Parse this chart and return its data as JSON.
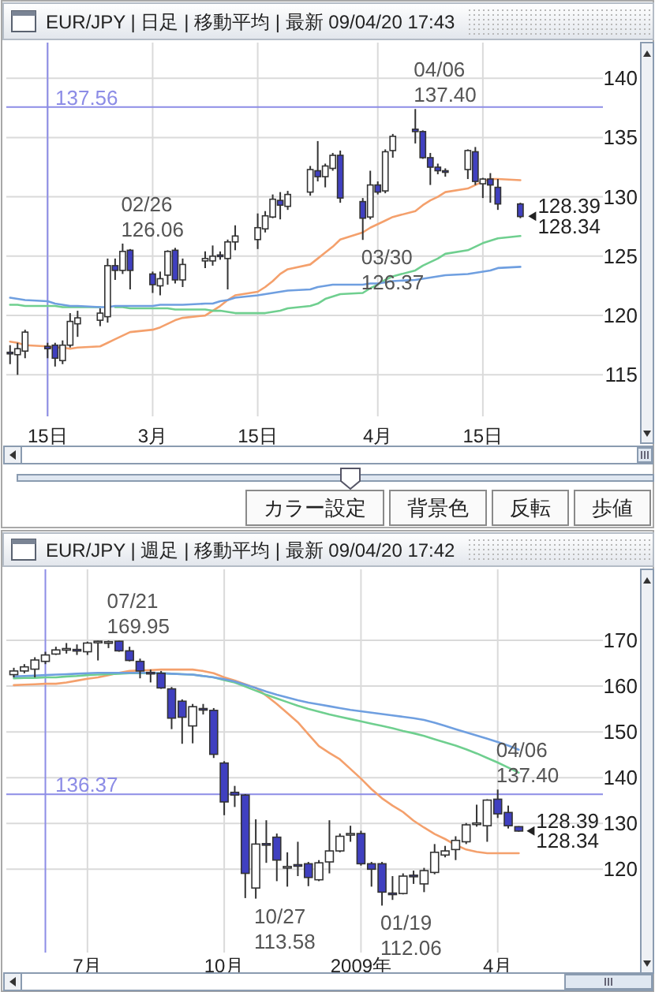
{
  "chart_data": [
    {
      "type": "candlestick",
      "title": "EUR/JPY | 日足 | 移動平均 | 最新 09/04/20 17:43",
      "x": [
        "2009-02-11",
        "2009-02-12",
        "2009-02-13",
        "2009-02-16",
        "2009-02-17",
        "2009-02-18",
        "2009-02-19",
        "2009-02-20",
        "2009-02-23",
        "2009-02-24",
        "2009-02-25",
        "2009-02-26",
        "2009-02-27",
        "2009-03-02",
        "2009-03-03",
        "2009-03-04",
        "2009-03-05",
        "2009-03-06",
        "2009-03-09",
        "2009-03-10",
        "2009-03-11",
        "2009-03-12",
        "2009-03-13",
        "2009-03-16",
        "2009-03-17",
        "2009-03-18",
        "2009-03-19",
        "2009-03-20",
        "2009-03-23",
        "2009-03-24",
        "2009-03-25",
        "2009-03-26",
        "2009-03-27",
        "2009-03-30",
        "2009-03-31",
        "2009-04-01",
        "2009-04-02",
        "2009-04-03",
        "2009-04-06",
        "2009-04-07",
        "2009-04-08",
        "2009-04-09",
        "2009-04-10",
        "2009-04-13",
        "2009-04-14",
        "2009-04-15",
        "2009-04-16",
        "2009-04-17",
        "2009-04-20"
      ],
      "xlim": [
        "2009-02-10T12:00",
        "2009-05-01"
      ],
      "xticks": [
        {
          "value": "2009-02-16",
          "label": "15日"
        },
        {
          "value": "2009-03-02",
          "label": "3月"
        },
        {
          "value": "2009-03-16",
          "label": "15日"
        },
        {
          "value": "2009-04-01",
          "label": "4月"
        },
        {
          "value": "2009-04-15",
          "label": "15日"
        }
      ],
      "ohlc": [
        [
          116.9,
          117.5,
          115.9,
          116.8
        ],
        [
          116.7,
          117.7,
          115.0,
          117.2
        ],
        [
          117.0,
          118.8,
          116.4,
          118.6
        ],
        [
          117.4,
          117.7,
          116.4,
          117.2
        ],
        [
          117.5,
          117.7,
          115.7,
          116.4
        ],
        [
          116.2,
          117.9,
          115.9,
          117.5
        ],
        [
          117.5,
          120.2,
          117.3,
          119.5
        ],
        [
          119.3,
          120.4,
          118.2,
          119.8
        ],
        [
          119.6,
          120.6,
          119.1,
          120.2
        ],
        [
          119.9,
          124.8,
          119.4,
          124.2
        ],
        [
          124.2,
          124.8,
          123.0,
          123.8
        ],
        [
          123.8,
          126.06,
          123.5,
          125.4
        ],
        [
          125.5,
          125.6,
          122.2,
          123.8
        ],
        [
          123.5,
          123.7,
          121.9,
          122.6
        ],
        [
          122.5,
          123.7,
          121.7,
          123.1
        ],
        [
          123.4,
          125.5,
          122.6,
          125.4
        ],
        [
          125.5,
          125.7,
          122.7,
          123.0
        ],
        [
          123.0,
          124.8,
          122.4,
          124.3
        ],
        [
          124.6,
          125.4,
          124.0,
          124.8
        ],
        [
          124.6,
          125.9,
          124.2,
          125.0
        ],
        [
          125.1,
          125.4,
          124.7,
          125.0
        ],
        [
          124.8,
          126.4,
          122.2,
          126.2
        ],
        [
          126.2,
          127.6,
          125.5,
          126.7
        ],
        [
          126.4,
          128.6,
          125.6,
          127.4
        ],
        [
          127.3,
          128.8,
          127.0,
          128.4
        ],
        [
          128.3,
          130.2,
          128.2,
          129.8
        ],
        [
          129.7,
          130.4,
          128.1,
          129.3
        ],
        [
          129.2,
          130.5,
          128.9,
          130.2
        ],
        [
          130.4,
          132.6,
          130.1,
          132.3
        ],
        [
          132.2,
          134.7,
          131.3,
          131.7
        ],
        [
          131.7,
          132.8,
          130.8,
          132.6
        ],
        [
          132.4,
          133.7,
          132.2,
          133.5
        ],
        [
          133.5,
          133.9,
          129.5,
          129.9
        ],
        [
          129.6,
          129.9,
          126.37,
          128.2
        ],
        [
          128.3,
          132.2,
          128.1,
          131.0
        ],
        [
          131.0,
          131.3,
          130.2,
          130.4
        ],
        [
          130.5,
          134.0,
          130.3,
          133.8
        ],
        [
          133.9,
          135.3,
          133.3,
          135.1
        ],
        [
          135.7,
          137.4,
          134.5,
          135.5
        ],
        [
          135.5,
          135.6,
          133.2,
          133.3
        ],
        [
          133.3,
          133.7,
          131.0,
          132.5
        ],
        [
          132.5,
          132.8,
          131.9,
          132.2
        ],
        [
          132.2,
          132.4,
          131.7,
          132.1
        ],
        [
          132.3,
          134.0,
          131.5,
          133.9
        ],
        [
          133.8,
          134.2,
          131.0,
          131.3
        ],
        [
          131.1,
          131.6,
          129.9,
          131.5
        ],
        [
          131.5,
          132.0,
          129.5,
          131.0
        ],
        [
          130.8,
          131.5,
          128.9,
          129.4
        ],
        [
          129.4,
          129.5,
          128.2,
          128.34
        ]
      ],
      "colors": [
        "#4040c0",
        "#ffffff",
        "#ffffff",
        "#4040c0",
        "#4040c0",
        "#ffffff",
        "#ffffff",
        "#ffffff",
        "#ffffff",
        "#ffffff",
        "#4040c0",
        "#ffffff",
        "#4040c0",
        "#4040c0",
        "#ffffff",
        "#ffffff",
        "#4040c0",
        "#ffffff",
        "#ffffff",
        "#ffffff",
        "#4040c0",
        "#ffffff",
        "#ffffff",
        "#ffffff",
        "#ffffff",
        "#ffffff",
        "#4040c0",
        "#ffffff",
        "#ffffff",
        "#4040c0",
        "#ffffff",
        "#ffffff",
        "#4040c0",
        "#4040c0",
        "#ffffff",
        "#4040c0",
        "#ffffff",
        "#ffffff",
        "#4040c0",
        "#4040c0",
        "#4040c0",
        "#4040c0",
        "#4040c0",
        "#ffffff",
        "#4040c0",
        "#ffffff",
        "#4040c0",
        "#4040c0",
        "#4040c0"
      ],
      "series": [
        {
          "type": "line",
          "color": "#f4a06c",
          "values": [
            117.8,
            117.7,
            117.5,
            117.4,
            117.3,
            117.3,
            117.2,
            117.3,
            117.4,
            117.7,
            118.0,
            118.3,
            118.6,
            118.8,
            119.0,
            119.3,
            119.6,
            119.8,
            120.0,
            120.4,
            120.8,
            121.3,
            121.7,
            122.0,
            122.4,
            122.9,
            123.5,
            123.9,
            124.3,
            124.8,
            125.3,
            125.8,
            126.4,
            127.0,
            127.4,
            127.7,
            128.0,
            128.3,
            128.8,
            129.3,
            129.7,
            130.0,
            130.4,
            130.7,
            131.0,
            131.3,
            131.5,
            131.5,
            131.4
          ]
        },
        {
          "type": "line",
          "color": "#6fcf8f",
          "values": [
            120.9,
            120.9,
            120.8,
            120.8,
            120.8,
            120.7,
            120.7,
            120.7,
            120.7,
            null,
            120.7,
            120.7,
            120.6,
            120.6,
            120.6,
            120.6,
            120.5,
            120.5,
            120.5,
            120.4,
            120.4,
            120.3,
            120.2,
            120.2,
            120.2,
            120.3,
            120.4,
            120.6,
            120.8,
            121.0,
            121.4,
            121.6,
            121.8,
            121.9,
            122.3,
            122.6,
            123.0,
            123.3,
            123.8,
            124.2,
            124.5,
            124.8,
            125.2,
            125.5,
            125.8,
            126.1,
            126.3,
            126.5,
            126.7
          ]
        },
        {
          "type": "line",
          "color": "#6f9fe0",
          "values": [
            121.5,
            121.4,
            121.3,
            121.2,
            121.0,
            120.9,
            120.8,
            120.8,
            120.7,
            120.7,
            120.8,
            120.8,
            120.8,
            120.8,
            120.9,
            120.9,
            120.9,
            120.9,
            121.0,
            121.0,
            121.2,
            121.3,
            121.5,
            121.7,
            121.8,
            121.9,
            122.0,
            122.1,
            122.2,
            122.4,
            122.5,
            122.6,
            122.6,
            122.6,
            122.7,
            122.7,
            122.8,
            122.9,
            123.0,
            123.1,
            123.2,
            123.3,
            123.4,
            123.5,
            123.6,
            123.7,
            123.8,
            124.0,
            124.1
          ]
        }
      ],
      "ylim": [
        111.5,
        143
      ],
      "yticks": [
        115,
        120,
        125,
        130,
        135,
        140
      ],
      "grid": true,
      "ref_lines": [
        {
          "axis": "y",
          "value": 137.56,
          "label": "137.56",
          "color": "#8c8ce6"
        },
        {
          "axis": "x",
          "value": "2009-02-16",
          "color": "#8c8ce6"
        }
      ],
      "annotations": [
        {
          "text": "02/26\n126.06",
          "x": "2009-02-26",
          "y": 126.06
        },
        {
          "text": "03/30\n126.37",
          "x": "2009-03-30",
          "y": 126.37
        },
        {
          "text": "04/06\n137.40",
          "x": "2009-04-06",
          "y": 137.4
        },
        {
          "text": "128.39",
          "x": "2009-04-20",
          "y": 128.39
        },
        {
          "text": "128.34",
          "x": "2009-04-20",
          "y": 128.34
        },
        "カラー設定",
        "背景色",
        "反転",
        "歩値"
      ]
    },
    {
      "type": "candlestick",
      "title": "EUR/JPY | 週足 | 移動平均 | 最新 09/04/20 17:42",
      "x": [
        "2008-05-19",
        "2008-05-26",
        "2008-06-02",
        "2008-06-09",
        "2008-06-16",
        "2008-06-23",
        "2008-06-30",
        "2008-07-07",
        "2008-07-14",
        "2008-07-21",
        "2008-07-28",
        "2008-08-04",
        "2008-08-11",
        "2008-08-18",
        "2008-08-25",
        "2008-09-01",
        "2008-09-08",
        "2008-09-15",
        "2008-09-22",
        "2008-09-29",
        "2008-10-06",
        "2008-10-13",
        "2008-10-20",
        "2008-10-27",
        "2008-11-03",
        "2008-11-10",
        "2008-11-17",
        "2008-11-24",
        "2008-12-01",
        "2008-12-08",
        "2008-12-15",
        "2008-12-22",
        "2008-12-29",
        "2009-01-05",
        "2009-01-12",
        "2009-01-19",
        "2009-01-26",
        "2009-02-02",
        "2009-02-09",
        "2009-02-16",
        "2009-02-23",
        "2009-03-02",
        "2009-03-09",
        "2009-03-16",
        "2009-03-23",
        "2009-03-30",
        "2009-04-06",
        "2009-04-13",
        "2009-04-20"
      ],
      "xlim": [
        "2008-05-14",
        "2009-06-15"
      ],
      "xticks": [
        {
          "value": "2008-07-07",
          "label": "7月"
        },
        {
          "value": "2008-10-06",
          "label": "10月"
        },
        {
          "value": "2009-01-05",
          "label": "2009年"
        },
        {
          "value": "2009-04-06",
          "label": "4月"
        }
      ],
      "ohlc": [
        [
          162.5,
          164.0,
          161.9,
          163.3
        ],
        [
          163.3,
          164.8,
          162.8,
          164.2
        ],
        [
          163.7,
          166.3,
          161.9,
          165.7
        ],
        [
          165.4,
          167.5,
          164.8,
          166.8
        ],
        [
          167.0,
          168.6,
          166.8,
          167.9
        ],
        [
          168.1,
          169.4,
          167.1,
          168.2
        ],
        [
          168.0,
          169.1,
          166.8,
          167.9
        ],
        [
          167.5,
          169.7,
          166.8,
          169.4
        ],
        [
          169.6,
          169.9,
          165.6,
          169.8
        ],
        [
          169.6,
          169.95,
          168.3,
          169.7
        ],
        [
          169.8,
          169.9,
          167.5,
          167.7
        ],
        [
          167.7,
          168.6,
          165.4,
          165.6
        ],
        [
          165.4,
          166.0,
          161.7,
          163.3
        ],
        [
          163.0,
          163.6,
          160.8,
          162.9
        ],
        [
          162.8,
          163.3,
          159.4,
          159.6
        ],
        [
          159.4,
          159.8,
          150.6,
          153.0
        ],
        [
          156.7,
          157.1,
          147.4,
          153.2
        ],
        [
          151.3,
          156.1,
          147.5,
          155.5
        ],
        [
          155.1,
          156.1,
          153.8,
          155.0
        ],
        [
          154.7,
          155.2,
          144.3,
          145.1
        ],
        [
          143.2,
          143.6,
          131.8,
          134.7
        ],
        [
          136.8,
          138.2,
          133.6,
          136.2
        ],
        [
          136.2,
          136.4,
          113.7,
          119.1
        ],
        [
          115.9,
          130.9,
          113.58,
          125.5
        ],
        [
          125.6,
          130.7,
          121.4,
          125.4
        ],
        [
          127.0,
          127.8,
          117.4,
          122.0
        ],
        [
          120.3,
          123.7,
          116.2,
          120.6
        ],
        [
          121.0,
          126.0,
          118.5,
          120.7
        ],
        [
          121.2,
          121.6,
          116.3,
          118.2
        ],
        [
          117.7,
          122.0,
          117.4,
          121.4
        ],
        [
          121.6,
          130.7,
          119.1,
          124.0
        ],
        [
          124.0,
          127.8,
          123.7,
          127.2
        ],
        [
          127.6,
          129.5,
          126.0,
          127.8
        ],
        [
          127.8,
          128.4,
          120.8,
          121.2
        ],
        [
          121.2,
          121.6,
          116.2,
          120.0
        ],
        [
          121.2,
          121.6,
          112.06,
          115.0
        ],
        [
          114.8,
          118.5,
          113.3,
          114.6
        ],
        [
          114.7,
          119.1,
          114.5,
          118.5
        ],
        [
          118.7,
          119.7,
          116.8,
          118.4
        ],
        [
          116.8,
          120.3,
          115.0,
          119.7
        ],
        [
          119.3,
          125.5,
          118.9,
          123.7
        ],
        [
          123.1,
          125.1,
          122.6,
          124.0
        ],
        [
          124.3,
          127.2,
          122.0,
          126.3
        ],
        [
          126.0,
          130.1,
          125.5,
          129.7
        ],
        [
          129.9,
          134.1,
          129.3,
          130.1
        ],
        [
          129.5,
          135.3,
          126.0,
          135.1
        ],
        [
          135.3,
          137.4,
          131.2,
          132.1
        ],
        [
          132.4,
          133.9,
          128.9,
          129.5
        ],
        [
          129.3,
          129.4,
          128.2,
          128.34
        ]
      ],
      "colors": [
        "#ffffff",
        "#ffffff",
        "#ffffff",
        "#ffffff",
        "#ffffff",
        "#ffffff",
        "#4040c0",
        "#ffffff",
        "#ffffff",
        "#ffffff",
        "#4040c0",
        "#4040c0",
        "#4040c0",
        "#4040c0",
        "#4040c0",
        "#4040c0",
        "#4040c0",
        "#ffffff",
        "#4040c0",
        "#4040c0",
        "#4040c0",
        "#4040c0",
        "#4040c0",
        "#ffffff",
        "#4040c0",
        "#4040c0",
        "#ffffff",
        "#4040c0",
        "#4040c0",
        "#ffffff",
        "#ffffff",
        "#ffffff",
        "#ffffff",
        "#4040c0",
        "#4040c0",
        "#4040c0",
        "#4040c0",
        "#ffffff",
        "#4040c0",
        "#ffffff",
        "#ffffff",
        "#ffffff",
        "#ffffff",
        "#ffffff",
        "#ffffff",
        "#ffffff",
        "#4040c0",
        "#4040c0",
        "#4040c0"
      ],
      "series": [
        {
          "type": "line",
          "color": "#f4a06c",
          "values": [
            160.2,
            160.3,
            160.4,
            160.5,
            160.5,
            160.8,
            161.2,
            161.6,
            161.9,
            162.4,
            162.9,
            163.3,
            163.4,
            163.5,
            163.6,
            163.6,
            163.6,
            163.6,
            163.3,
            162.8,
            161.9,
            161.2,
            160.4,
            159.6,
            157.9,
            156.1,
            154.1,
            152.1,
            149.5,
            146.9,
            145.4,
            144.0,
            141.9,
            139.8,
            137.5,
            135.5,
            133.9,
            132.5,
            130.6,
            129.1,
            127.7,
            126.6,
            125.3,
            124.3,
            123.8,
            123.5,
            123.5,
            123.5,
            123.5
          ]
        },
        {
          "type": "line",
          "color": "#6fcf8f",
          "values": [
            161.7,
            161.8,
            161.8,
            161.9,
            161.9,
            162.1,
            162.2,
            162.4,
            162.5,
            162.6,
            162.7,
            162.8,
            162.8,
            162.8,
            162.8,
            162.7,
            162.6,
            162.5,
            162.2,
            161.9,
            161.3,
            160.8,
            159.9,
            159.0,
            158.1,
            157.3,
            156.5,
            155.7,
            155.0,
            154.4,
            153.8,
            153.3,
            152.8,
            152.3,
            151.8,
            151.3,
            150.8,
            150.2,
            149.7,
            149.1,
            148.4,
            147.7,
            147.0,
            146.2,
            145.3,
            144.3,
            143.3,
            142.2,
            141.1
          ]
        },
        {
          "type": "line",
          "color": "#6f9fe0",
          "values": [
            162.1,
            162.2,
            162.3,
            162.4,
            162.5,
            162.6,
            162.7,
            162.8,
            162.9,
            162.9,
            162.9,
            162.9,
            162.9,
            162.9,
            162.8,
            162.7,
            162.6,
            162.5,
            162.2,
            161.9,
            161.5,
            161.0,
            160.3,
            159.6,
            158.8,
            158.1,
            157.5,
            156.9,
            156.4,
            156.0,
            155.6,
            155.2,
            154.8,
            154.5,
            154.2,
            153.9,
            153.6,
            153.3,
            153.0,
            152.6,
            152.0,
            151.3,
            150.6,
            149.9,
            149.2,
            148.5,
            147.8,
            147.0,
            146.1
          ]
        }
      ],
      "ylim": [
        101.8,
        185.5
      ],
      "yticks": [
        120,
        130,
        140,
        150,
        160,
        170
      ],
      "grid": true,
      "ref_lines": [
        {
          "axis": "y",
          "value": 136.37,
          "label": "136.37",
          "color": "#8c8ce6"
        },
        {
          "axis": "x",
          "value": "2008-06-09",
          "color": "#8c8ce6"
        }
      ],
      "annotations": [
        {
          "text": "07/21\n169.95",
          "x": "2008-07-21",
          "y": 169.95
        },
        {
          "text": "10/27\n113.58",
          "x": "2008-10-27",
          "y": 113.58
        },
        {
          "text": "01/19\n112.06",
          "x": "2009-01-19",
          "y": 112.06
        },
        {
          "text": "04/06\n137.40",
          "x": "2009-04-06",
          "y": 137.4
        },
        {
          "text": "128.39",
          "x": "2009-04-20",
          "y": 128.39
        },
        {
          "text": "128.34",
          "x": "2009-04-20",
          "y": 128.34
        }
      ]
    }
  ]
}
